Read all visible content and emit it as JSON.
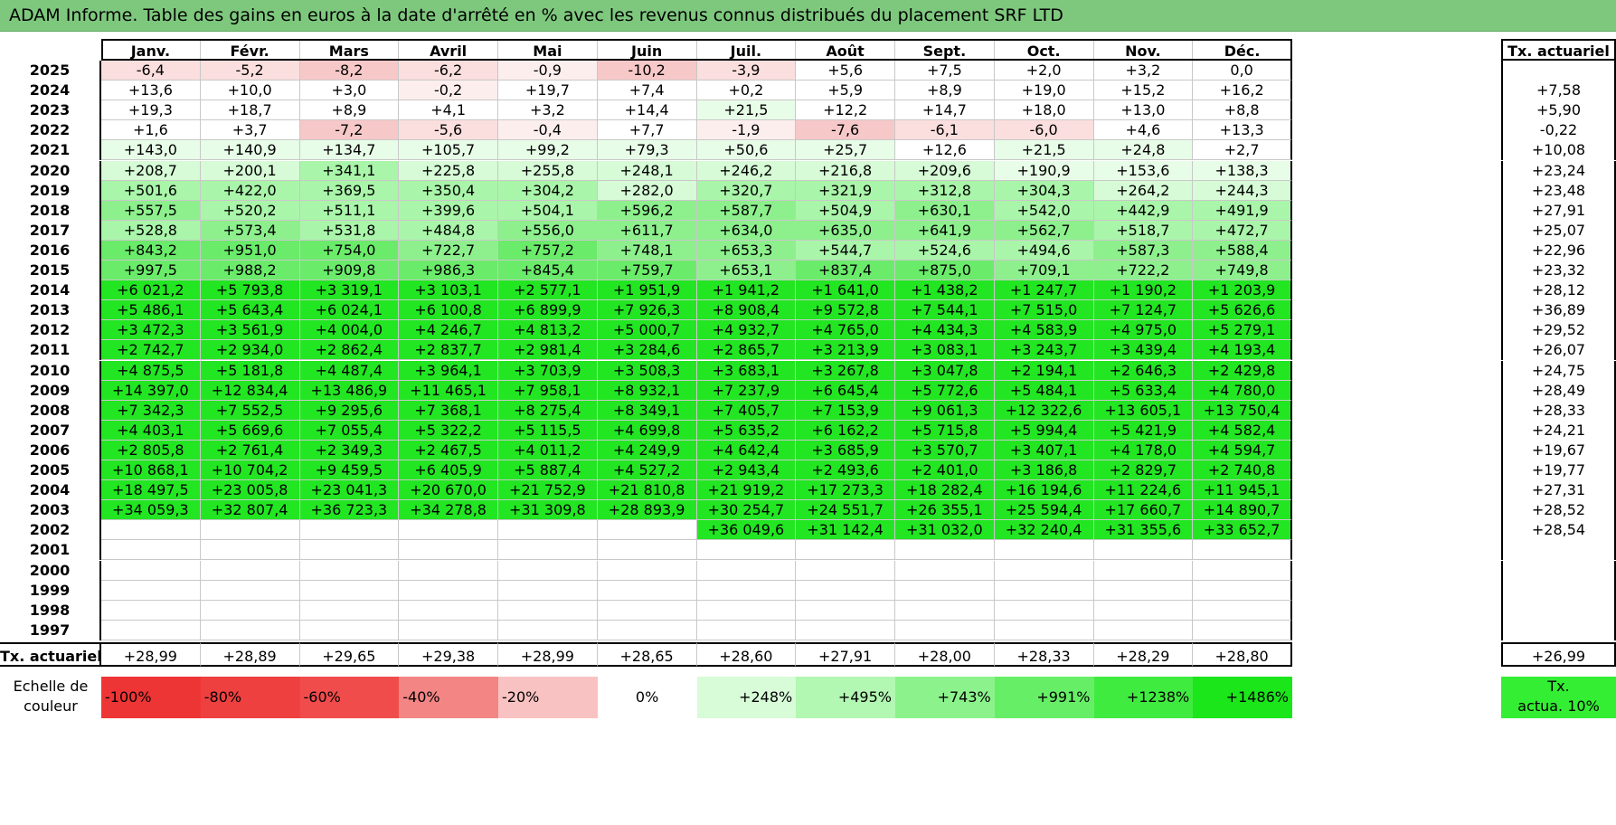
{
  "title": "ADAM Informe. Table des gains en euros à la date d'arrêté en % avec les revenus connus distribués du placement SRF LTD",
  "months": [
    "Janv.",
    "Févr.",
    "Mars",
    "Avril",
    "Mai",
    "Juin",
    "Juil.",
    "Août",
    "Sept.",
    "Oct.",
    "Nov.",
    "Déc."
  ],
  "tx_header": "Tx. actuariel",
  "rows": [
    {
      "year": "2025",
      "values": [
        "-6,4",
        "-5,2",
        "-8,2",
        "-6,2",
        "-0,9",
        "-10,2",
        "-3,9",
        "+5,6",
        "+7,5",
        "+2,0",
        "+3,2",
        "0,0"
      ],
      "tx": ""
    },
    {
      "year": "2024",
      "values": [
        "+13,6",
        "+10,0",
        "+3,0",
        "-0,2",
        "+19,7",
        "+7,4",
        "+0,2",
        "+5,9",
        "+8,9",
        "+19,0",
        "+15,2",
        "+16,2"
      ],
      "tx": "+7,58"
    },
    {
      "year": "2023",
      "values": [
        "+19,3",
        "+18,7",
        "+8,9",
        "+4,1",
        "+3,2",
        "+14,4",
        "+21,5",
        "+12,2",
        "+14,7",
        "+18,0",
        "+13,0",
        "+8,8"
      ],
      "tx": "+5,90"
    },
    {
      "year": "2022",
      "values": [
        "+1,6",
        "+3,7",
        "-7,2",
        "-5,6",
        "-0,4",
        "+7,7",
        "-1,9",
        "-7,6",
        "-6,1",
        "-6,0",
        "+4,6",
        "+13,3"
      ],
      "tx": "-0,22"
    },
    {
      "year": "2021",
      "values": [
        "+143,0",
        "+140,9",
        "+134,7",
        "+105,7",
        "+99,2",
        "+79,3",
        "+50,6",
        "+25,7",
        "+12,6",
        "+21,5",
        "+24,8",
        "+2,7"
      ],
      "tx": "+10,08"
    },
    {
      "year": "2020",
      "values": [
        "+208,7",
        "+200,1",
        "+341,1",
        "+225,8",
        "+255,8",
        "+248,1",
        "+246,2",
        "+216,8",
        "+209,6",
        "+190,9",
        "+153,6",
        "+138,3"
      ],
      "tx": "+23,24"
    },
    {
      "year": "2019",
      "values": [
        "+501,6",
        "+422,0",
        "+369,5",
        "+350,4",
        "+304,2",
        "+282,0",
        "+320,7",
        "+321,9",
        "+312,8",
        "+304,3",
        "+264,2",
        "+244,3"
      ],
      "tx": "+23,48"
    },
    {
      "year": "2018",
      "values": [
        "+557,5",
        "+520,2",
        "+511,1",
        "+399,6",
        "+504,1",
        "+596,2",
        "+587,7",
        "+504,9",
        "+630,1",
        "+542,0",
        "+442,9",
        "+491,9"
      ],
      "tx": "+27,91"
    },
    {
      "year": "2017",
      "values": [
        "+528,8",
        "+573,4",
        "+531,8",
        "+484,8",
        "+556,0",
        "+611,7",
        "+634,0",
        "+635,0",
        "+641,9",
        "+562,7",
        "+518,7",
        "+472,7"
      ],
      "tx": "+25,07"
    },
    {
      "year": "2016",
      "values": [
        "+843,2",
        "+951,0",
        "+754,0",
        "+722,7",
        "+757,2",
        "+748,1",
        "+653,3",
        "+544,7",
        "+524,6",
        "+494,6",
        "+587,3",
        "+588,4"
      ],
      "tx": "+22,96"
    },
    {
      "year": "2015",
      "values": [
        "+997,5",
        "+988,2",
        "+909,8",
        "+986,3",
        "+845,4",
        "+759,7",
        "+653,1",
        "+837,4",
        "+875,0",
        "+709,1",
        "+722,2",
        "+749,8"
      ],
      "tx": "+23,32"
    },
    {
      "year": "2014",
      "values": [
        "+6 021,2",
        "+5 793,8",
        "+3 319,1",
        "+3 103,1",
        "+2 577,1",
        "+1 951,9",
        "+1 941,2",
        "+1 641,0",
        "+1 438,2",
        "+1 247,7",
        "+1 190,2",
        "+1 203,9"
      ],
      "tx": "+28,12"
    },
    {
      "year": "2013",
      "values": [
        "+5 486,1",
        "+5 643,4",
        "+6 024,1",
        "+6 100,8",
        "+6 899,9",
        "+7 926,3",
        "+8 908,4",
        "+9 572,8",
        "+7 544,1",
        "+7 515,0",
        "+7 124,7",
        "+5 626,6"
      ],
      "tx": "+36,89"
    },
    {
      "year": "2012",
      "values": [
        "+3 472,3",
        "+3 561,9",
        "+4 004,0",
        "+4 246,7",
        "+4 813,2",
        "+5 000,7",
        "+4 932,7",
        "+4 765,0",
        "+4 434,3",
        "+4 583,9",
        "+4 975,0",
        "+5 279,1"
      ],
      "tx": "+29,52"
    },
    {
      "year": "2011",
      "values": [
        "+2 742,7",
        "+2 934,0",
        "+2 862,4",
        "+2 837,7",
        "+2 981,4",
        "+3 284,6",
        "+2 865,7",
        "+3 213,9",
        "+3 083,1",
        "+3 243,7",
        "+3 439,4",
        "+4 193,4"
      ],
      "tx": "+26,07"
    },
    {
      "year": "2010",
      "values": [
        "+4 875,5",
        "+5 181,8",
        "+4 487,4",
        "+3 964,1",
        "+3 703,9",
        "+3 508,3",
        "+3 683,1",
        "+3 267,8",
        "+3 047,8",
        "+2 194,1",
        "+2 646,3",
        "+2 429,8"
      ],
      "tx": "+24,75"
    },
    {
      "year": "2009",
      "values": [
        "+14 397,0",
        "+12 834,4",
        "+13 486,9",
        "+11 465,1",
        "+7 958,1",
        "+8 932,1",
        "+7 237,9",
        "+6 645,4",
        "+5 772,6",
        "+5 484,1",
        "+5 633,4",
        "+4 780,0"
      ],
      "tx": "+28,49"
    },
    {
      "year": "2008",
      "values": [
        "+7 342,3",
        "+7 552,5",
        "+9 295,6",
        "+7 368,1",
        "+8 275,4",
        "+8 349,1",
        "+7 405,7",
        "+7 153,9",
        "+9 061,3",
        "+12 322,6",
        "+13 605,1",
        "+13 750,4"
      ],
      "tx": "+28,33"
    },
    {
      "year": "2007",
      "values": [
        "+4 403,1",
        "+5 669,6",
        "+7 055,4",
        "+5 322,2",
        "+5 115,5",
        "+4 699,8",
        "+5 635,2",
        "+6 162,2",
        "+5 715,8",
        "+5 994,4",
        "+5 421,9",
        "+4 582,4"
      ],
      "tx": "+24,21"
    },
    {
      "year": "2006",
      "values": [
        "+2 805,8",
        "+2 761,4",
        "+2 349,3",
        "+2 467,5",
        "+4 011,2",
        "+4 249,9",
        "+4 642,4",
        "+3 685,9",
        "+3 570,7",
        "+3 407,1",
        "+4 178,0",
        "+4 594,7"
      ],
      "tx": "+19,67"
    },
    {
      "year": "2005",
      "values": [
        "+10 868,1",
        "+10 704,2",
        "+9 459,5",
        "+6 405,9",
        "+5 887,4",
        "+4 527,2",
        "+2 943,4",
        "+2 493,6",
        "+2 401,0",
        "+3 186,8",
        "+2 829,7",
        "+2 740,8"
      ],
      "tx": "+19,77"
    },
    {
      "year": "2004",
      "values": [
        "+18 497,5",
        "+23 005,8",
        "+23 041,3",
        "+20 670,0",
        "+21 752,9",
        "+21 810,8",
        "+21 919,2",
        "+17 273,3",
        "+18 282,4",
        "+16 194,6",
        "+11 224,6",
        "+11 945,1"
      ],
      "tx": "+27,31"
    },
    {
      "year": "2003",
      "values": [
        "+34 059,3",
        "+32 807,4",
        "+36 723,3",
        "+34 278,8",
        "+31 309,8",
        "+28 893,9",
        "+30 254,7",
        "+24 551,7",
        "+26 355,1",
        "+25 594,4",
        "+17 660,7",
        "+14 890,7"
      ],
      "tx": "+28,52"
    },
    {
      "year": "2002",
      "values": [
        "",
        "",
        "",
        "",
        "",
        "",
        "+36 049,6",
        "+31 142,4",
        "+31 032,0",
        "+32 240,4",
        "+31 355,6",
        "+33 652,7"
      ],
      "tx": "+28,54"
    },
    {
      "year": "2001",
      "values": [
        "",
        "",
        "",
        "",
        "",
        "",
        "",
        "",
        "",
        "",
        "",
        ""
      ],
      "tx": ""
    },
    {
      "year": "2000",
      "values": [
        "",
        "",
        "",
        "",
        "",
        "",
        "",
        "",
        "",
        "",
        "",
        ""
      ],
      "tx": ""
    },
    {
      "year": "1999",
      "values": [
        "",
        "",
        "",
        "",
        "",
        "",
        "",
        "",
        "",
        "",
        "",
        ""
      ],
      "tx": ""
    },
    {
      "year": "1998",
      "values": [
        "",
        "",
        "",
        "",
        "",
        "",
        "",
        "",
        "",
        "",
        "",
        ""
      ],
      "tx": ""
    },
    {
      "year": "1997",
      "values": [
        "",
        "",
        "",
        "",
        "",
        "",
        "",
        "",
        "",
        "",
        "",
        ""
      ],
      "tx": ""
    }
  ],
  "tx_row": {
    "label": "Tx. actuariel",
    "values": [
      "+28,99",
      "+28,89",
      "+29,65",
      "+29,38",
      "+28,99",
      "+28,65",
      "+28,60",
      "+27,91",
      "+28,00",
      "+28,33",
      "+28,29",
      "+28,80"
    ],
    "total": "+26,99"
  },
  "scale": {
    "label_line1": "Echelle de",
    "label_line2": "couleur",
    "items": [
      {
        "label": "-100%",
        "color": "#ee3535",
        "align": "left"
      },
      {
        "label": "-80%",
        "color": "#ef4040",
        "align": "left"
      },
      {
        "label": "-60%",
        "color": "#f04c4c",
        "align": "left"
      },
      {
        "label": "-40%",
        "color": "#f38585",
        "align": "left"
      },
      {
        "label": "-20%",
        "color": "#f9c2c2",
        "align": "left"
      },
      {
        "label": "0%",
        "color": "#ffffff",
        "align": "center"
      },
      {
        "label": "+248%",
        "color": "#d8fbd8",
        "align": "right"
      },
      {
        "label": "+495%",
        "color": "#b2f7b2",
        "align": "right"
      },
      {
        "label": "+743%",
        "color": "#8cf38c",
        "align": "right"
      },
      {
        "label": "+991%",
        "color": "#66ef66",
        "align": "right"
      },
      {
        "label": "+1238%",
        "color": "#40eb40",
        "align": "right"
      },
      {
        "label": "+1486%",
        "color": "#1ae61a",
        "align": "right"
      }
    ],
    "tx_legend_line1": "Tx.",
    "tx_legend_line2": "actua. 10%"
  },
  "colors": {
    "title_bar": "#7ec87e",
    "neg_strong": "#f7c8c8",
    "neg_light": "#fde7e7",
    "pos_bright": "#22e622"
  }
}
